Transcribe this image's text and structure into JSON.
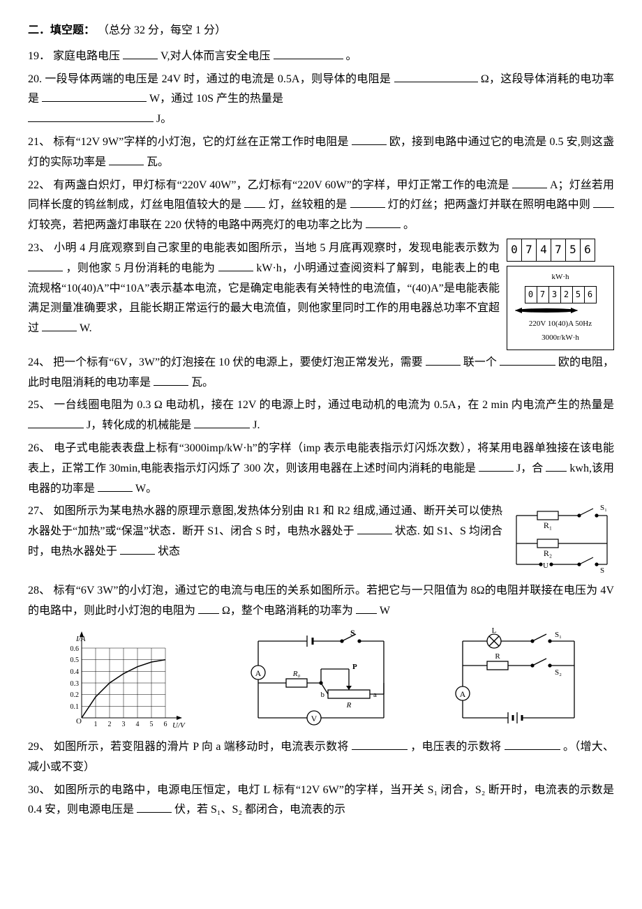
{
  "section": {
    "heading": "二．填空题：",
    "scoring": "（总分 32 分，每空 1 分）"
  },
  "q19": {
    "num": "19．",
    "t1": "家庭电路电压",
    "t2": "V,对人体而言安全电压",
    "t3": "。"
  },
  "q20": {
    "num": "20.",
    "t1": "一段导体两端的电压是 24V 时，通过的电流是 0.5A，则导体的电阻是",
    "t2": "Ω，这段导体消耗的电功率是",
    "t3": "W，通过 10S 产生的热量是",
    "t4": "J。"
  },
  "q21": {
    "num": "21、",
    "t1": "标有“12V  9W”字样的小灯泡，它的灯丝在正常工作时电阻是",
    "t2": "欧，接到电路中通过它的电流是 0.5 安,则这盏灯的实际功率是",
    "t3": "瓦。"
  },
  "q22": {
    "num": "22、",
    "t1": "有两盏白炽灯，甲灯标有“220V 40W”，乙灯标有“220V 60W”的字样，甲灯正常工作的电流是",
    "t2": "A；灯丝若用同样长度的钨丝制成，灯丝电阻值较大的是",
    "t3": "灯，丝较粗的是",
    "t4": "灯的灯丝；把两盏灯并联在照明电路中则",
    "t5": "灯较亮，若把两盏灯串联在 220 伏特的电路中两亮灯的电功率之比为",
    "t6": "。"
  },
  "q23": {
    "num": "23、",
    "t1": "小明 4 月底观察到自己家里的电能表如图所示，当地 5 月底再观察时，发现电能表示数为",
    "t2": "，则他家 5 月份消耗的电能为",
    "t3": "kW·h，小明通过查阅资料了解到，电能表上的电流规格“10(40)A”中“10A”表示基本电流，它是确定电能表有关特性的电流值，“(40)A”是电能表能满足测量准确要求，且能长期正常运行的最大电流值，则他家里同时工作的用电器总功率不宜超过",
    "t4": "W.",
    "meter_top_digits": [
      "0",
      "7",
      "4",
      "7",
      "5",
      "6"
    ],
    "meter_unit": "kW·h",
    "meter_digits": [
      "0",
      "7",
      "3",
      "2",
      "5",
      "6"
    ],
    "meter_spec1": "220V  10(40)A  50Hz",
    "meter_spec2": "3000r/kW·h"
  },
  "q24": {
    "num": "24、",
    "t1": "把一个标有“6V，3W”的灯泡接在 10 伏的电源上，要使灯泡正常发光，需要",
    "t2": "联一个",
    "t3": "欧的电阻，此时电阻消耗的电功率是",
    "t4": "瓦。"
  },
  "q25": {
    "num": "25、",
    "t1": "一台线圈电阻为 0.3 Ω 电动机，接在 12V 的电源上时，通过电动机的电流为 0.5A，在 2 min 内电流产生的热量是",
    "t2": "J，转化成的机械能是",
    "t3": " J."
  },
  "q26": {
    "num": "26、",
    "t1": "电子式电能表表盘上标有“3000imp/kW·h”的字样（imp 表示电能表指示灯闪烁次数），将某用电器单独接在该电能表上，正常工作 30min,电能表指示灯闪烁了 300 次，则该用电器在上述时间内消耗的电能是",
    "t2": "J，合",
    "t3": "kwh,该用电器的功率是",
    "t4": "W。"
  },
  "q27": {
    "num": "27、",
    "t1": "如图所示为某电热水器的原理示意图,发热体分别由 R1 和 R2 组成,通过通、断开关可以使热水器处于“加热”或“保温”状态．断开 S1、闭合 S 时，电热水器处于",
    "t2": "状态.  如 S1、S 均闭合时，电热水器处于",
    "t3": "状态",
    "labels": {
      "r1": "R₁",
      "r2": "R₂",
      "s1": "S₁",
      "s": "S",
      "u": "U"
    }
  },
  "q28": {
    "num": "28、",
    "t1": "标有“6V   3W”的小灯泡，通过它的电流与电压的关系如图所示。若把它与一只阻值为 8Ω的电阻并联接在电压为 4V 的电路中，则此时小灯泡的电阻为",
    "t2": "Ω，整个电路消耗的功率为",
    "t3": "W",
    "graph": {
      "ylabel": "I/A",
      "xlabel": "U/V",
      "yticks": [
        "0.6",
        "0.5",
        "0.4",
        "0.3",
        "0.2",
        "0.1"
      ],
      "xticks": [
        "1",
        "2",
        "3",
        "4",
        "5",
        "6"
      ],
      "origin": "O",
      "points": [
        [
          0,
          0
        ],
        [
          1,
          0.18
        ],
        [
          2,
          0.3
        ],
        [
          3,
          0.38
        ],
        [
          4,
          0.44
        ],
        [
          5,
          0.48
        ],
        [
          6,
          0.5
        ]
      ],
      "grid_color": "#000",
      "line_color": "#000"
    },
    "circuit2": {
      "s": "S",
      "r0": "R₀",
      "p": "P",
      "r": "R",
      "a": "a",
      "b": "b",
      "A": "A",
      "V": "V"
    },
    "circuit3": {
      "L": "L",
      "s1": "S₁",
      "s2": "S₂",
      "R": "R",
      "A": "A"
    }
  },
  "q29": {
    "num": "29、",
    "t1": "如图所示，若变阻器的滑片 P 向 a 端移动时，电流表示数将",
    "t2": "，电压表的示数将",
    "t3": "。（增大、减小或不变）"
  },
  "q30": {
    "num": "30、",
    "t1": "如图所示的电路中，电源电压恒定，电灯 L 标有“12V 6W”的字样，当开关 S₁ 闭合，S₂ 断开时，电流表的示数是 0.4 安，则电源电压是",
    "t2": "伏，若 S₁、S₂ 都闭合，电流表的示"
  }
}
